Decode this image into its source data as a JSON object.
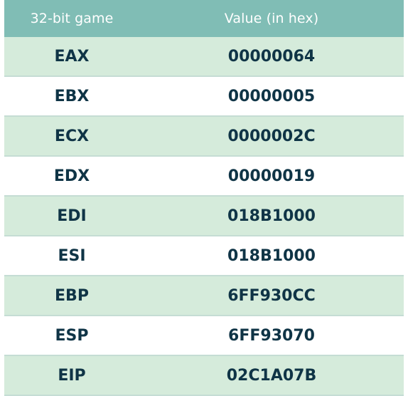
{
  "table": {
    "headers": [
      "32-bit game",
      "Value (in hex)"
    ],
    "rows": [
      {
        "register": "EAX",
        "value": "00000064"
      },
      {
        "register": "EBX",
        "value": "00000005"
      },
      {
        "register": "ECX",
        "value": "0000002C"
      },
      {
        "register": "EDX",
        "value": "00000019"
      },
      {
        "register": "EDI",
        "value": "018B1000"
      },
      {
        "register": "ESI",
        "value": "018B1000"
      },
      {
        "register": "EBP",
        "value": "6FF930CC"
      },
      {
        "register": "ESP",
        "value": "6FF93070"
      },
      {
        "register": "EIP",
        "value": "02C1A07B"
      }
    ],
    "colors": {
      "header_bg": "#80bdb5",
      "shaded_row_bg": "#d5ebdb",
      "text": "#0f3446"
    }
  }
}
